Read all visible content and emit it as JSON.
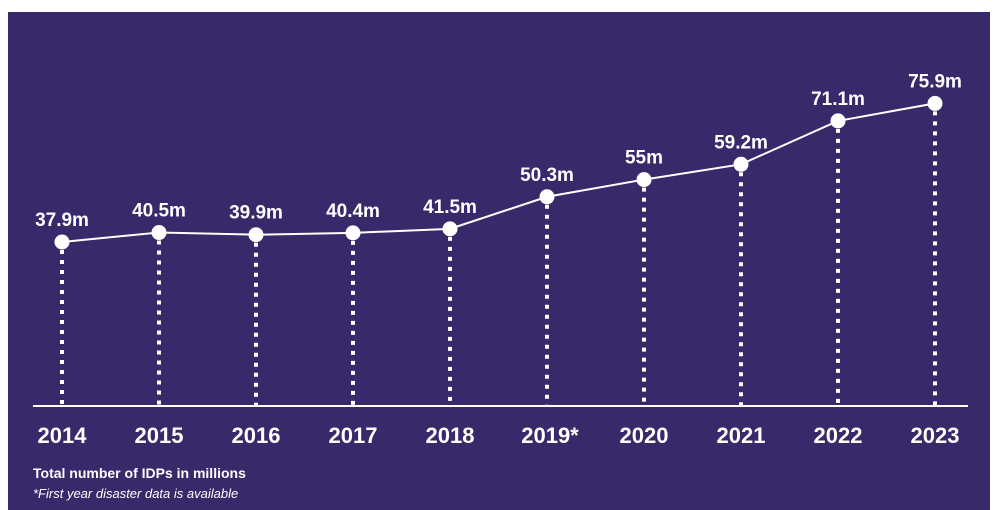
{
  "chart_data": {
    "type": "line",
    "x": [
      "2014",
      "2015",
      "2016",
      "2017",
      "2018",
      "2019*",
      "2020",
      "2021",
      "2022",
      "2023"
    ],
    "values": [
      37.9,
      40.5,
      39.9,
      40.4,
      41.5,
      50.3,
      55,
      59.2,
      71.1,
      75.9
    ],
    "data_labels": [
      "37.9m",
      "40.5m",
      "39.9m",
      "40.4m",
      "41.5m",
      "50.3m",
      "55m",
      "59.2m",
      "71.1m",
      "75.9m"
    ],
    "title": "",
    "xlabel": "",
    "ylabel": "",
    "grid": false,
    "legend": "none"
  },
  "notes": {
    "title": "Total number of IDPs in millions",
    "subtitle": "*First year disaster data is available"
  },
  "colors": {
    "background": "#37296a",
    "line": "#ffffff",
    "text": "#ffffff"
  }
}
